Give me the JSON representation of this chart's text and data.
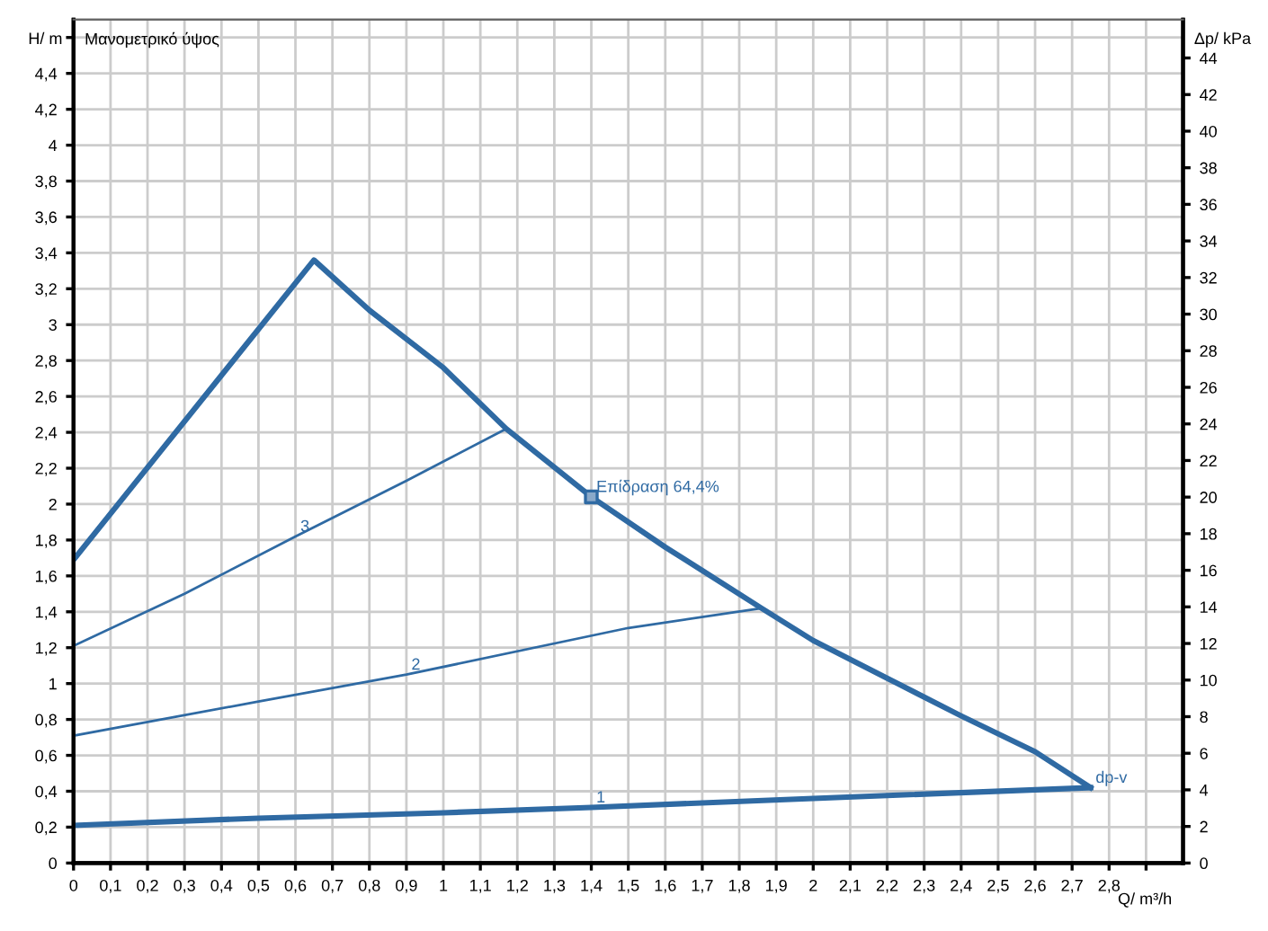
{
  "chart_data": {
    "type": "line",
    "title": "Μανομετρικό ύψος",
    "xlabel": "Q/ m³/h",
    "ylabel": "H/ m",
    "y2label": "Δp/ kPa",
    "series": [
      {
        "color": "#2f6aa3",
        "x": [
          0,
          0.65,
          0.8,
          1.0,
          1.17,
          1.4,
          1.6,
          1.7,
          1.86,
          2.0,
          2.2,
          2.4,
          2.6,
          2.75
        ],
        "values": [
          1.69,
          3.36,
          3.08,
          2.76,
          2.42,
          2.04,
          1.76,
          1.63,
          1.42,
          1.24,
          1.03,
          0.82,
          0.62,
          0.42
        ]
      },
      {
        "color": "#2f6aa3",
        "x": [
          0,
          0.5,
          1.0,
          1.4,
          2.0,
          2.75
        ],
        "values": [
          0.21,
          0.25,
          0.28,
          0.31,
          0.36,
          0.42
        ]
      },
      {
        "color": "#2f6aa3",
        "x": [
          0,
          0.5,
          0.9,
          1.5,
          1.86
        ],
        "values": [
          0.71,
          0.9,
          1.05,
          1.31,
          1.42
        ]
      },
      {
        "color": "#2f6aa3",
        "x": [
          0,
          0.3,
          0.6,
          0.9,
          1.17
        ],
        "values": [
          1.21,
          1.5,
          1.82,
          2.13,
          2.42
        ]
      },
      {
        "type": "scatter",
        "marker": "square",
        "color": "#2f6aa3",
        "x": [
          1.4
        ],
        "values": [
          2.04
        ]
      }
    ],
    "annotations": [
      {
        "text": "1",
        "x": 1.4,
        "y": 0.31
      },
      {
        "text": "2",
        "x": 0.9,
        "y": 1.05
      },
      {
        "text": "3",
        "x": 0.6,
        "y": 1.82
      },
      {
        "text": "dp-v",
        "x": 2.75,
        "y": 0.42
      },
      {
        "text": "Επίδραση 64,4%",
        "x": 1.4,
        "y": 2.04
      }
    ],
    "xlim": [
      0,
      3.0
    ],
    "ylim": [
      0,
      4.7
    ],
    "y2lim": [
      0,
      46.1
    ],
    "xticks": [
      0,
      {
        "value": 0.1,
        "label": "0,1"
      },
      {
        "value": 0.2,
        "label": "0,2"
      },
      {
        "value": 0.3,
        "label": "0,3"
      },
      {
        "value": 0.4,
        "label": "0,4"
      },
      {
        "value": 0.5,
        "label": "0,5"
      },
      {
        "value": 0.6,
        "label": "0,6"
      },
      {
        "value": 0.7,
        "label": "0,7"
      },
      {
        "value": 0.8,
        "label": "0,8"
      },
      {
        "value": 0.9,
        "label": "0,9"
      },
      1,
      {
        "value": 1.1,
        "label": "1,1"
      },
      {
        "value": 1.2,
        "label": "1,2"
      },
      {
        "value": 1.3,
        "label": "1,3"
      },
      {
        "value": 1.4,
        "label": "1,4"
      },
      {
        "value": 1.5,
        "label": "1,5"
      },
      {
        "value": 1.6,
        "label": "1,6"
      },
      {
        "value": 1.7,
        "label": "1,7"
      },
      {
        "value": 1.8,
        "label": "1,8"
      },
      {
        "value": 1.9,
        "label": "1,9"
      },
      2,
      {
        "value": 2.1,
        "label": "2,1"
      },
      {
        "value": 2.2,
        "label": "2,2"
      },
      {
        "value": 2.3,
        "label": "2,3"
      },
      {
        "value": 2.4,
        "label": "2,4"
      },
      {
        "value": 2.5,
        "label": "2,5"
      },
      {
        "value": 2.6,
        "label": "2,6"
      },
      {
        "value": 2.7,
        "label": "2,7"
      },
      {
        "value": 2.8,
        "label": "2,8"
      },
      {
        "value": 2.9,
        "label": null
      }
    ],
    "yticks": [
      0,
      {
        "value": 0.2,
        "label": "0,2"
      },
      {
        "value": 0.4,
        "label": "0,4"
      },
      {
        "value": 0.6,
        "label": "0,6"
      },
      {
        "value": 0.8,
        "label": "0,8"
      },
      1,
      {
        "value": 1.2,
        "label": "1,2"
      },
      {
        "value": 1.4,
        "label": "1,4"
      },
      {
        "value": 1.6,
        "label": "1,6"
      },
      {
        "value": 1.8,
        "label": "1,8"
      },
      2,
      {
        "value": 2.2,
        "label": "2,2"
      },
      {
        "value": 2.4,
        "label": "2,4"
      },
      {
        "value": 2.6,
        "label": "2,6"
      },
      {
        "value": 2.8,
        "label": "2,8"
      },
      3,
      {
        "value": 3.2,
        "label": "3,2"
      },
      {
        "value": 3.4,
        "label": "3,4"
      },
      {
        "value": 3.6,
        "label": "3,6"
      },
      {
        "value": 3.8,
        "label": "3,8"
      },
      4,
      {
        "value": 4.2,
        "label": "4,2"
      },
      {
        "value": 4.4,
        "label": "4,4"
      },
      {
        "value": 4.6,
        "label": null
      }
    ],
    "y2ticks": [
      0,
      2,
      4,
      6,
      8,
      10,
      12,
      14,
      16,
      18,
      20,
      22,
      24,
      26,
      28,
      30,
      32,
      34,
      36,
      38,
      40,
      42,
      44
    ],
    "grid": true,
    "legend": false
  }
}
